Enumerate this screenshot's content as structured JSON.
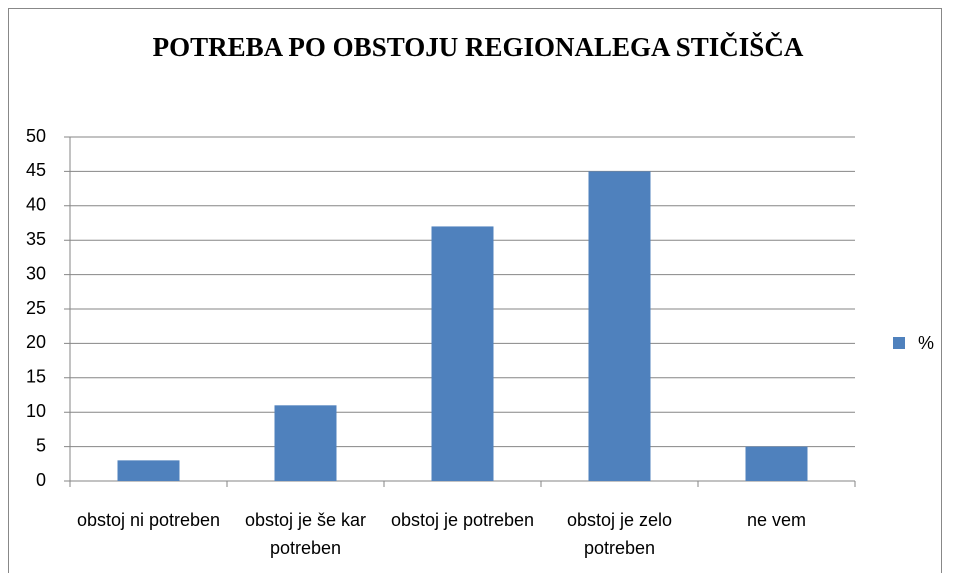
{
  "chart_data": {
    "type": "bar",
    "title": "POTREBA PO OBSTOJU REGIONALEGA STIČIŠČA",
    "categories": [
      "obstoj ni potreben",
      "obstoj je še kar potreben",
      "obstoj je potreben",
      "obstoj je zelo potreben",
      "ne vem"
    ],
    "series": [
      {
        "name": "%",
        "color": "#4f81bd",
        "values": [
          3,
          11,
          37,
          45,
          5
        ]
      }
    ],
    "ylim": [
      0,
      50
    ],
    "yticks": [
      0,
      5,
      10,
      15,
      20,
      25,
      30,
      35,
      40,
      45,
      50
    ],
    "grid": true,
    "legend": "right"
  }
}
